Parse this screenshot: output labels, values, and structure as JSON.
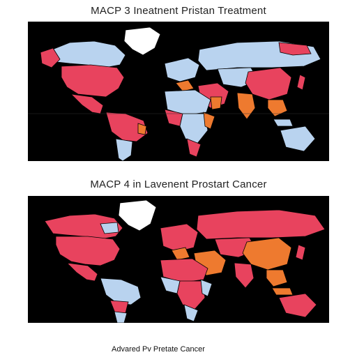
{
  "maps": [
    {
      "title": "MACP 3 Ineatnent Pristan Treatment"
    },
    {
      "title": "MACP 4 in Lavenent Prostart Cancer"
    }
  ],
  "caption": "Advared Pv Pretate Cancer",
  "colors": {
    "background": "#000000",
    "high": "#e8435e",
    "medium": "#ee7a2f",
    "low": "#b9d3ef",
    "none": "#ffffff",
    "ocean": "#000000"
  }
}
